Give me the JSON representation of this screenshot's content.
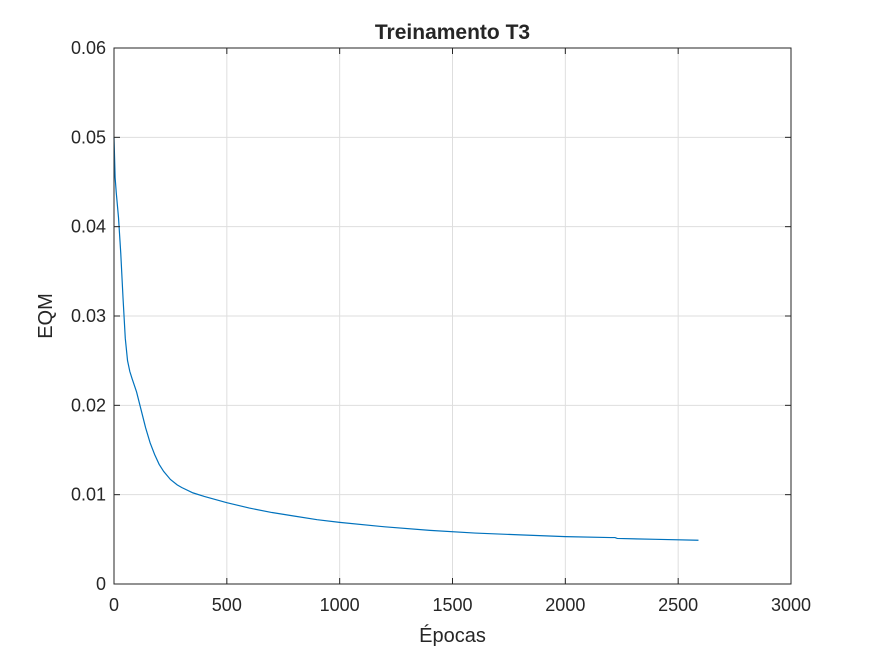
{
  "chart_data": {
    "type": "line",
    "title": "Treinamento T3",
    "xlabel": "Épocas",
    "ylabel": "EQM",
    "xlim": [
      0,
      3000
    ],
    "ylim": [
      0,
      0.06
    ],
    "xticks": [
      0,
      500,
      1000,
      1500,
      2000,
      2500,
      3000
    ],
    "xtick_labels": [
      "0",
      "500",
      "1000",
      "1500",
      "2000",
      "2500",
      "3000"
    ],
    "yticks": [
      0,
      0.01,
      0.02,
      0.03,
      0.04,
      0.05,
      0.06
    ],
    "ytick_labels": [
      "0",
      "0.01",
      "0.02",
      "0.03",
      "0.04",
      "0.05",
      "0.06"
    ],
    "grid": true,
    "series": [
      {
        "color": "#0072bd",
        "x": [
          0,
          5,
          10,
          20,
          30,
          40,
          50,
          60,
          70,
          80,
          100,
          120,
          140,
          160,
          180,
          200,
          220,
          250,
          280,
          300,
          350,
          400,
          500,
          600,
          700,
          800,
          900,
          1000,
          1200,
          1400,
          1600,
          1800,
          2000,
          2200,
          2220,
          2230,
          2400,
          2590
        ],
        "y": [
          0.05,
          0.0455,
          0.0438,
          0.041,
          0.037,
          0.032,
          0.0275,
          0.025,
          0.0238,
          0.023,
          0.0215,
          0.0195,
          0.0175,
          0.0158,
          0.0145,
          0.0134,
          0.0126,
          0.0117,
          0.0111,
          0.0108,
          0.0102,
          0.0098,
          0.0091,
          0.0085,
          0.008,
          0.0076,
          0.0072,
          0.0069,
          0.0064,
          0.006,
          0.0057,
          0.0055,
          0.0053,
          0.0052,
          0.0052,
          0.0051,
          0.005,
          0.0049
        ]
      }
    ]
  }
}
